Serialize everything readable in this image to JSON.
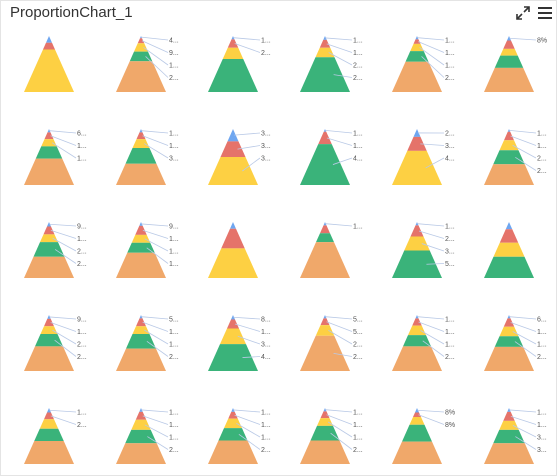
{
  "header": {
    "title": "ProportionChart_1",
    "expand_icon": "expand-arrows-icon",
    "menu_icon": "hamburger-menu-icon"
  },
  "colors": {
    "blue": "#6ea6f0",
    "red": "#e5736a",
    "yellow": "#fdd043",
    "green": "#3ab37a",
    "orange": "#f0a86a",
    "leader": "#b9c9e6"
  },
  "chart_data": {
    "type": "pyramid",
    "grid": {
      "rows": 5,
      "cols": 6
    },
    "charts": [
      {
        "segments": [
          [
            "blue",
            12
          ],
          [
            "red",
            12
          ],
          [
            "yellow",
            76
          ]
        ],
        "labels": []
      },
      {
        "segments": [
          [
            "blue",
            4
          ],
          [
            "red",
            9
          ],
          [
            "yellow",
            15
          ],
          [
            "green",
            17
          ],
          [
            "orange",
            55
          ]
        ],
        "labels": [
          "4...",
          "9...",
          "1...",
          "2..."
        ]
      },
      {
        "segments": [
          [
            "blue",
            6
          ],
          [
            "red",
            15
          ],
          [
            "yellow",
            20
          ],
          [
            "green",
            59
          ]
        ],
        "labels": [
          "1...",
          "2..."
        ]
      },
      {
        "segments": [
          [
            "blue",
            7
          ],
          [
            "red",
            14
          ],
          [
            "yellow",
            17
          ],
          [
            "green",
            62
          ]
        ],
        "labels": [
          "1...",
          "1...",
          "2...",
          "2..."
        ]
      },
      {
        "segments": [
          [
            "blue",
            6
          ],
          [
            "red",
            8
          ],
          [
            "yellow",
            13
          ],
          [
            "green",
            19
          ],
          [
            "orange",
            54
          ]
        ],
        "labels": [
          "1...",
          "1...",
          "1...",
          "2..."
        ]
      },
      {
        "segments": [
          [
            "blue",
            8
          ],
          [
            "red",
            15
          ],
          [
            "yellow",
            12
          ],
          [
            "green",
            22
          ],
          [
            "orange",
            43
          ]
        ],
        "labels": [
          "8%"
        ]
      },
      {
        "segments": [
          [
            "blue",
            6
          ],
          [
            "red",
            12
          ],
          [
            "yellow",
            13
          ],
          [
            "green",
            22
          ],
          [
            "orange",
            47
          ]
        ],
        "labels": [
          "6...",
          "1...",
          "1..."
        ]
      },
      {
        "segments": [
          [
            "blue",
            6
          ],
          [
            "red",
            12
          ],
          [
            "yellow",
            16
          ],
          [
            "green",
            28
          ],
          [
            "orange",
            38
          ]
        ],
        "labels": [
          "1...",
          "1...",
          "3..."
        ]
      },
      {
        "segments": [
          [
            "blue",
            22
          ],
          [
            "red",
            28
          ],
          [
            "yellow",
            50
          ]
        ],
        "labels": [
          "3...",
          "3...",
          "3..."
        ]
      },
      {
        "segments": [
          [
            "blue",
            5
          ],
          [
            "red",
            22
          ],
          [
            "green",
            73
          ]
        ],
        "labels": [
          "1...",
          "1...",
          "4..."
        ]
      },
      {
        "segments": [
          [
            "blue",
            14
          ],
          [
            "red",
            25
          ],
          [
            "yellow",
            61
          ]
        ],
        "labels": [
          "2...",
          "3...",
          "4..."
        ]
      },
      {
        "segments": [
          [
            "blue",
            5
          ],
          [
            "red",
            15
          ],
          [
            "yellow",
            18
          ],
          [
            "green",
            25
          ],
          [
            "orange",
            37
          ]
        ],
        "labels": [
          "1...",
          "1...",
          "2...",
          "2..."
        ]
      },
      {
        "segments": [
          [
            "blue",
            8
          ],
          [
            "red",
            14
          ],
          [
            "yellow",
            14
          ],
          [
            "green",
            26
          ],
          [
            "orange",
            38
          ]
        ],
        "labels": [
          "9...",
          "1...",
          "2...",
          "2..."
        ]
      },
      {
        "segments": [
          [
            "blue",
            7
          ],
          [
            "red",
            16
          ],
          [
            "yellow",
            14
          ],
          [
            "green",
            18
          ],
          [
            "orange",
            45
          ]
        ],
        "labels": [
          "9...",
          "1...",
          "1...",
          "1..."
        ]
      },
      {
        "segments": [
          [
            "blue",
            12
          ],
          [
            "red",
            35
          ],
          [
            "yellow",
            53
          ]
        ],
        "labels": []
      },
      {
        "segments": [
          [
            "blue",
            6
          ],
          [
            "red",
            14
          ],
          [
            "green",
            16
          ],
          [
            "orange",
            64
          ]
        ],
        "labels": [
          "1..."
        ]
      },
      {
        "segments": [
          [
            "blue",
            6
          ],
          [
            "red",
            20
          ],
          [
            "yellow",
            25
          ],
          [
            "green",
            49
          ]
        ],
        "labels": [
          "1...",
          "2...",
          "3...",
          "5..."
        ]
      },
      {
        "segments": [
          [
            "blue",
            13
          ],
          [
            "red",
            24
          ],
          [
            "yellow",
            25
          ],
          [
            "green",
            38
          ]
        ],
        "labels": []
      },
      {
        "segments": [
          [
            "blue",
            7
          ],
          [
            "red",
            13
          ],
          [
            "yellow",
            14
          ],
          [
            "green",
            22
          ],
          [
            "orange",
            44
          ]
        ],
        "labels": [
          "9...",
          "1...",
          "2...",
          "2..."
        ]
      },
      {
        "segments": [
          [
            "blue",
            6
          ],
          [
            "red",
            14
          ],
          [
            "yellow",
            14
          ],
          [
            "green",
            26
          ],
          [
            "orange",
            40
          ]
        ],
        "labels": [
          "5...",
          "1...",
          "1...",
          "2..."
        ]
      },
      {
        "segments": [
          [
            "blue",
            8
          ],
          [
            "red",
            16
          ],
          [
            "yellow",
            28
          ],
          [
            "green",
            48
          ]
        ],
        "labels": [
          "8...",
          "1...",
          "3...",
          "4..."
        ]
      },
      {
        "segments": [
          [
            "blue",
            6
          ],
          [
            "red",
            12
          ],
          [
            "yellow",
            19
          ],
          [
            "orange",
            63
          ]
        ],
        "labels": [
          "5...",
          "5...",
          "2...",
          "2..."
        ]
      },
      {
        "segments": [
          [
            "blue",
            6
          ],
          [
            "red",
            13
          ],
          [
            "yellow",
            17
          ],
          [
            "green",
            20
          ],
          [
            "orange",
            44
          ]
        ],
        "labels": [
          "1...",
          "1...",
          "1...",
          "2..."
        ]
      },
      {
        "segments": [
          [
            "blue",
            6
          ],
          [
            "red",
            15
          ],
          [
            "yellow",
            17
          ],
          [
            "green",
            19
          ],
          [
            "orange",
            43
          ]
        ],
        "labels": [
          "6...",
          "1...",
          "1...",
          "2..."
        ]
      },
      {
        "segments": [
          [
            "blue",
            8
          ],
          [
            "red",
            12
          ],
          [
            "yellow",
            17
          ],
          [
            "green",
            22
          ],
          [
            "orange",
            41
          ]
        ],
        "labels": [
          "1...",
          "2..."
        ]
      },
      {
        "segments": [
          [
            "blue",
            7
          ],
          [
            "red",
            14
          ],
          [
            "yellow",
            18
          ],
          [
            "green",
            24
          ],
          [
            "orange",
            37
          ]
        ],
        "labels": [
          "1...",
          "1...",
          "1...",
          "2..."
        ]
      },
      {
        "segments": [
          [
            "blue",
            7
          ],
          [
            "red",
            12
          ],
          [
            "yellow",
            17
          ],
          [
            "green",
            22
          ],
          [
            "orange",
            42
          ]
        ],
        "labels": [
          "1...",
          "1...",
          "1...",
          "2..."
        ]
      },
      {
        "segments": [
          [
            "blue",
            6
          ],
          [
            "red",
            12
          ],
          [
            "yellow",
            14
          ],
          [
            "green",
            26
          ],
          [
            "orange",
            42
          ]
        ],
        "labels": [
          "1...",
          "1...",
          "1...",
          "2..."
        ]
      },
      {
        "segments": [
          [
            "blue",
            8
          ],
          [
            "red",
            8
          ],
          [
            "yellow",
            14
          ],
          [
            "green",
            30
          ],
          [
            "orange",
            40
          ]
        ],
        "labels": [
          "8%",
          "8%"
        ]
      },
      {
        "segments": [
          [
            "blue",
            7
          ],
          [
            "red",
            16
          ],
          [
            "yellow",
            16
          ],
          [
            "green",
            24
          ],
          [
            "orange",
            37
          ]
        ],
        "labels": [
          "1...",
          "1...",
          "3...",
          "3..."
        ]
      }
    ]
  }
}
